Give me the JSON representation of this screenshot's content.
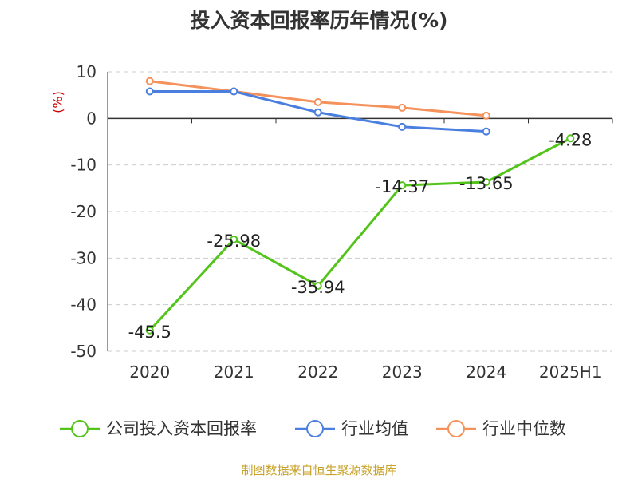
{
  "chart_data": {
    "type": "line",
    "title": "投入资本回报率历年情况(%)",
    "ylabel": "(%)",
    "xlabel": "",
    "categories": [
      "2020",
      "2021",
      "2022",
      "2023",
      "2024",
      "2025H1"
    ],
    "ylim": [
      -50,
      10
    ],
    "yticks": [
      10,
      0,
      -10,
      -20,
      -30,
      -40,
      -50
    ],
    "grid": true,
    "legend_position": "bottom",
    "series": [
      {
        "name": "公司投入资本回报率",
        "color": "#52c41a",
        "values": [
          -45.5,
          -25.98,
          -35.94,
          -14.37,
          -13.65,
          -4.28
        ],
        "labels": [
          "-45.5",
          "-25.98",
          "-35.94",
          "-14.37",
          "-13.65",
          "-4.28"
        ]
      },
      {
        "name": "行业均值",
        "color": "#4a7fe0",
        "values": [
          5.8,
          5.8,
          1.3,
          -1.8,
          -2.8,
          null
        ]
      },
      {
        "name": "行业中位数",
        "color": "#f5915a",
        "values": [
          8.0,
          5.8,
          3.5,
          2.3,
          0.6,
          null
        ]
      }
    ]
  },
  "source_note": "制图数据来自恒生聚源数据库"
}
